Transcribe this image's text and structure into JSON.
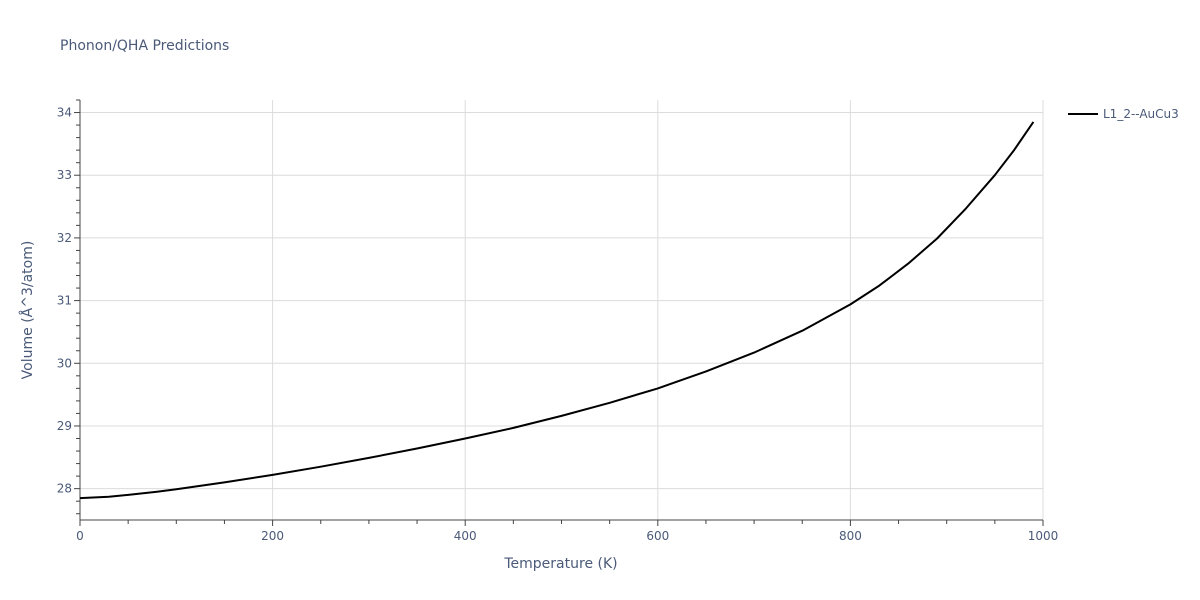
{
  "chart_data": {
    "type": "line",
    "title": "Phonon/QHA Predictions",
    "xlabel": "Temperature (K)",
    "ylabel": "Volume (Å^3/atom)",
    "xlim": [
      0,
      1000
    ],
    "ylim": [
      27.5,
      34.2
    ],
    "x_ticks": [
      0,
      200,
      400,
      600,
      800,
      1000
    ],
    "y_ticks": [
      28,
      29,
      30,
      31,
      32,
      33,
      34
    ],
    "grid": true,
    "legend_position": "top-right",
    "series": [
      {
        "name": "L1_2--AuCu3",
        "color": "#000000",
        "x": [
          0,
          30,
          50,
          80,
          100,
          150,
          200,
          250,
          300,
          350,
          400,
          450,
          500,
          550,
          600,
          650,
          700,
          750,
          800,
          830,
          860,
          890,
          920,
          950,
          970,
          990
        ],
        "y": [
          27.85,
          27.87,
          27.9,
          27.95,
          27.99,
          28.1,
          28.22,
          28.35,
          28.49,
          28.64,
          28.8,
          28.97,
          29.16,
          29.37,
          29.6,
          29.87,
          30.17,
          30.52,
          30.94,
          31.24,
          31.59,
          31.99,
          32.47,
          33.0,
          33.4,
          33.85
        ]
      }
    ]
  }
}
